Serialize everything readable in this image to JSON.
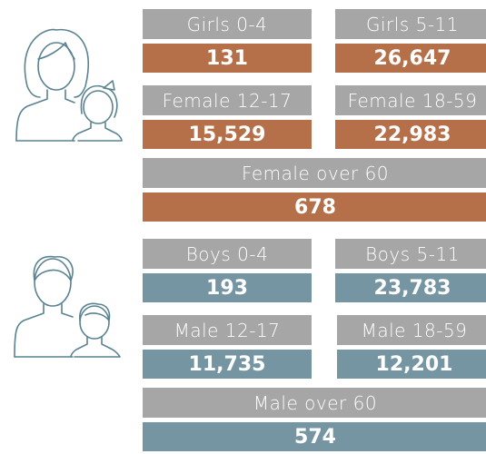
{
  "female": [
    {
      "label": "Girls 0-4",
      "value": "131"
    },
    {
      "label": "Girls 5-11",
      "value": "26,647"
    },
    {
      "label": "Female 12-17",
      "value": "15,529"
    },
    {
      "label": "Female 18-59",
      "value": "22,983"
    },
    {
      "label": "Female over 60",
      "value": "678"
    }
  ],
  "male": [
    {
      "label": "Boys 0-4",
      "value": "193"
    },
    {
      "label": "Boys 5-11",
      "value": "23,783"
    },
    {
      "label": "Male 12-17",
      "value": "11,735"
    },
    {
      "label": "Male 18-59",
      "value": "12,201"
    },
    {
      "label": "Male over 60",
      "value": "574"
    }
  ]
}
